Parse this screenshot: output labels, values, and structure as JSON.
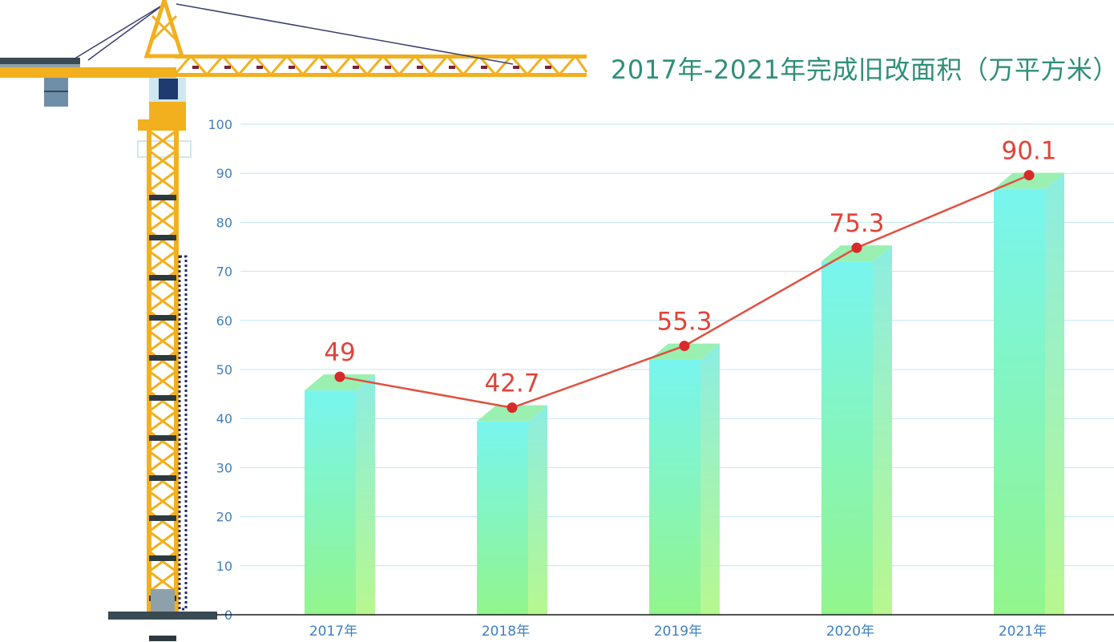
{
  "chart_data": {
    "type": "bar",
    "title": "2017年-2021年完成旧改面积（万平方米）",
    "categories": [
      "2017年",
      "2018年",
      "2019年",
      "2020年",
      "2021年"
    ],
    "values": [
      49,
      42.7,
      55.3,
      75.3,
      90.1
    ],
    "data_labels": [
      "49",
      "42.7",
      "55.3",
      "75.3",
      "90.1"
    ],
    "line_overlay": true,
    "ylim": [
      0,
      100
    ],
    "yticks": [
      0,
      10,
      20,
      30,
      40,
      50,
      60,
      70,
      80,
      90,
      100
    ],
    "ytick_labels": [
      "0",
      "10",
      "20",
      "30",
      "40",
      "50",
      "60",
      "70",
      "80",
      "90",
      "100"
    ],
    "grid": true,
    "xlabel": "",
    "ylabel": "",
    "colors": {
      "bar_top": "#78f5ef",
      "bar_bottom": "#92f58c",
      "line": "#e05040",
      "marker": "#d82a2a",
      "label": "#e0443a",
      "grid": "#bfe6f3",
      "tick": "#3f7fc0",
      "title": "#2f8f78",
      "crane": "#f2b01e"
    }
  }
}
